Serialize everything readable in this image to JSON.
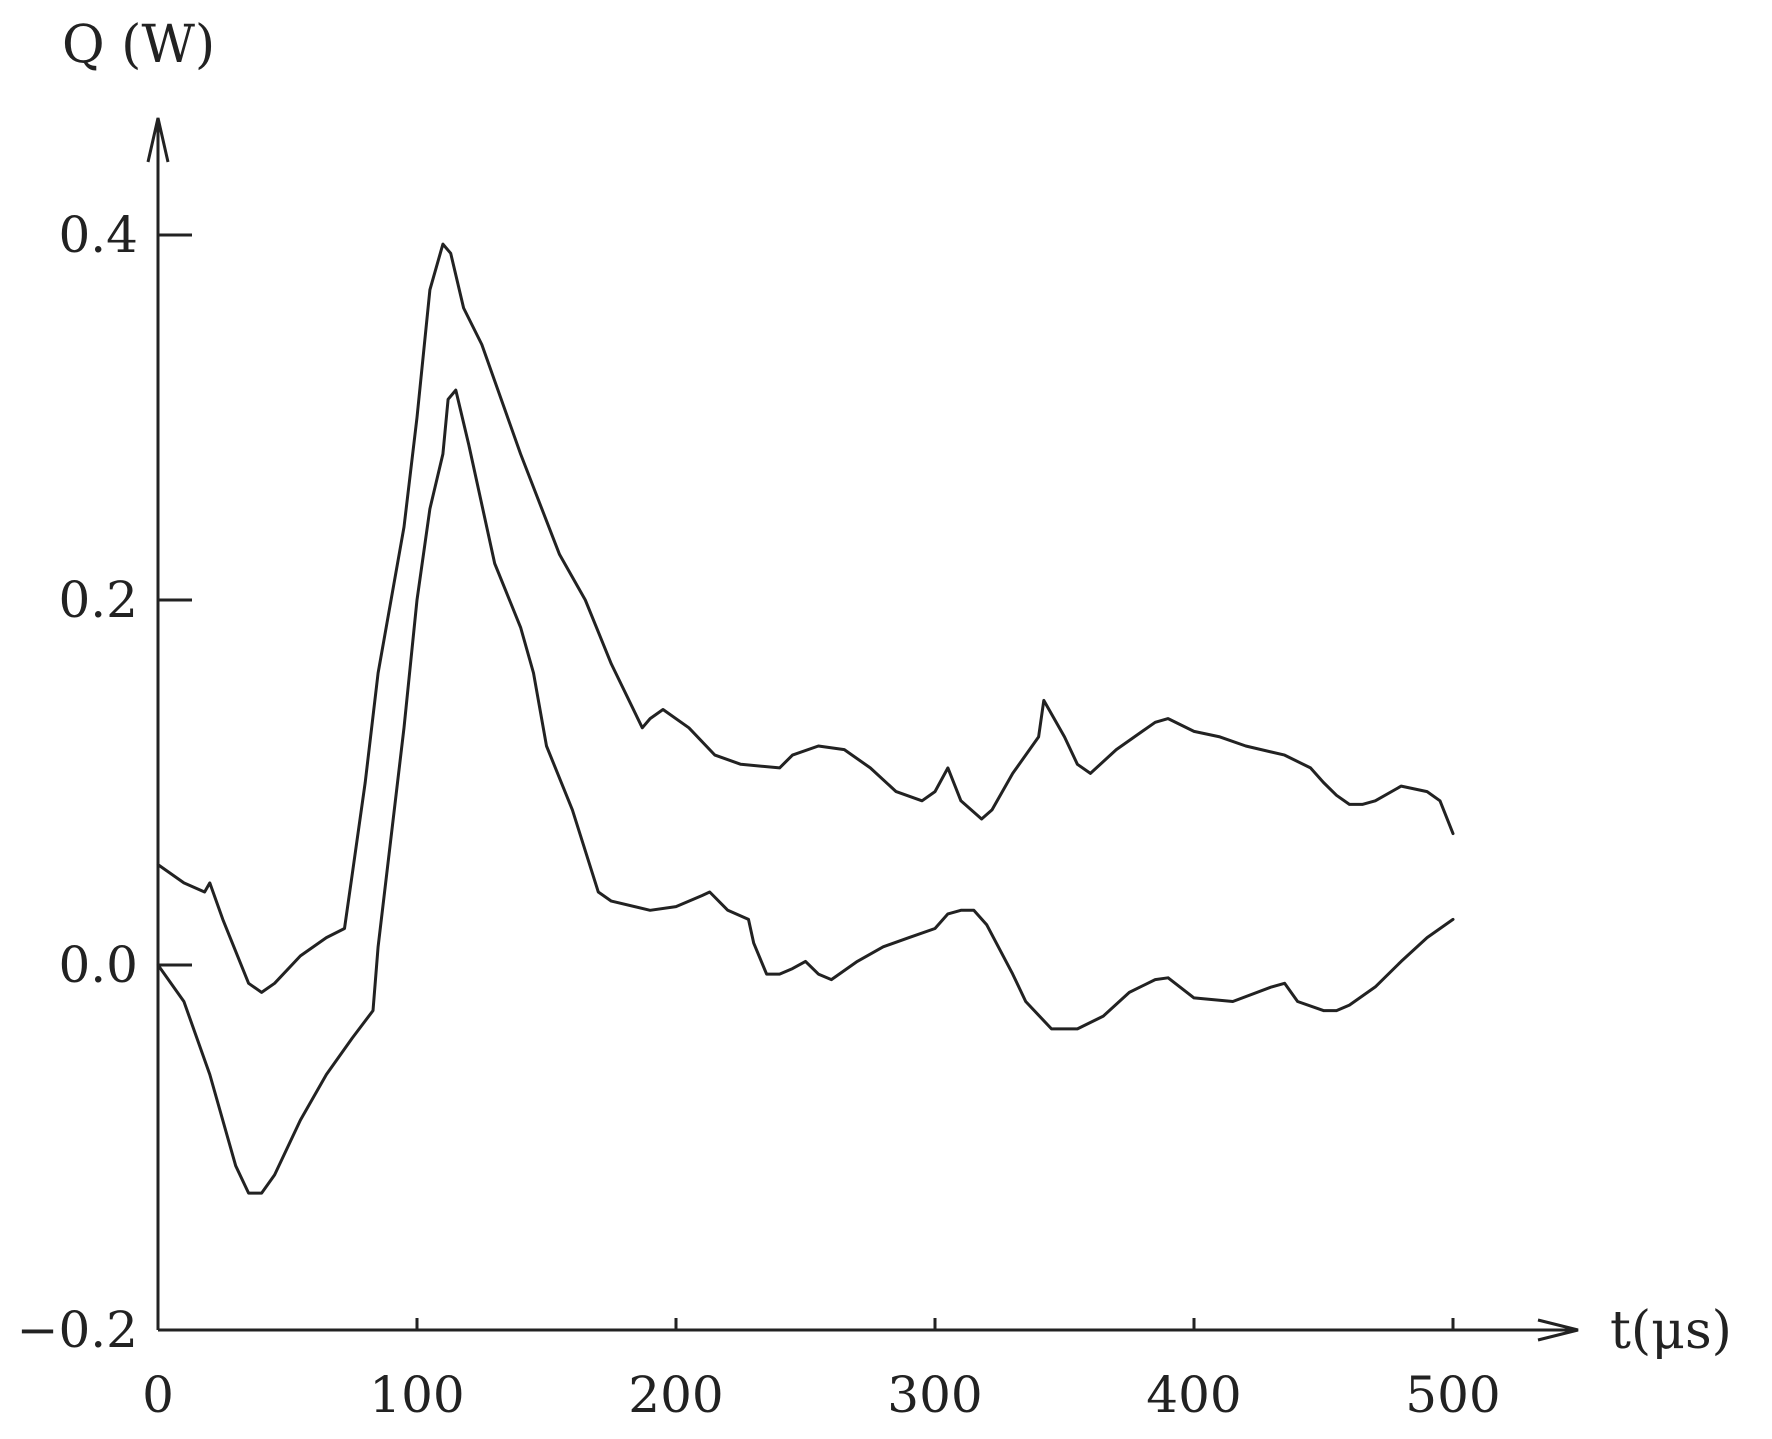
{
  "chart_data": {
    "type": "line",
    "ylabel": "Q (W)",
    "xlabel": "t(μs)",
    "xlim": [
      0,
      550
    ],
    "ylim": [
      -0.2,
      0.46
    ],
    "xticks": [
      {
        "value": 0,
        "label": "0"
      },
      {
        "value": 100,
        "label": "100"
      },
      {
        "value": 200,
        "label": "200"
      },
      {
        "value": 300,
        "label": "300"
      },
      {
        "value": 400,
        "label": "400"
      },
      {
        "value": 500,
        "label": "500"
      }
    ],
    "yticks": [
      {
        "value": -0.2,
        "label": "−0.2"
      },
      {
        "value": 0.0,
        "label": "0.0"
      },
      {
        "value": 0.2,
        "label": "0.2"
      },
      {
        "value": 0.4,
        "label": "0.4"
      }
    ],
    "grid": false,
    "series": [
      {
        "color": "#222222",
        "x": [
          0,
          10,
          18,
          20,
          25,
          35,
          40,
          45,
          55,
          65,
          72,
          75,
          80,
          85,
          95,
          100,
          105,
          110,
          113,
          118,
          125,
          140,
          155,
          165,
          175,
          187,
          190,
          195,
          205,
          215,
          225,
          240,
          245,
          255,
          265,
          275,
          285,
          295,
          300,
          305,
          310,
          318,
          322,
          330,
          340,
          342,
          350,
          355,
          360,
          370,
          380,
          385,
          390,
          400,
          410,
          420,
          435,
          445,
          450,
          455,
          460,
          465,
          470,
          480,
          490,
          495,
          500
        ],
        "y": [
          0.055,
          0.045,
          0.04,
          0.045,
          0.025,
          -0.01,
          -0.015,
          -0.01,
          0.005,
          0.015,
          0.02,
          0.05,
          0.1,
          0.16,
          0.24,
          0.3,
          0.37,
          0.395,
          0.39,
          0.36,
          0.34,
          0.28,
          0.225,
          0.2,
          0.165,
          0.13,
          0.135,
          0.14,
          0.13,
          0.115,
          0.11,
          0.108,
          0.115,
          0.12,
          0.118,
          0.108,
          0.095,
          0.09,
          0.095,
          0.108,
          0.09,
          0.08,
          0.085,
          0.105,
          0.125,
          0.145,
          0.125,
          0.11,
          0.105,
          0.118,
          0.128,
          0.133,
          0.135,
          0.128,
          0.125,
          0.12,
          0.115,
          0.108,
          0.1,
          0.093,
          0.088,
          0.088,
          0.09,
          0.098,
          0.095,
          0.09,
          0.072
        ]
      },
      {
        "color": "#222222",
        "x": [
          0,
          10,
          20,
          30,
          35,
          40,
          45,
          55,
          65,
          75,
          83,
          85,
          95,
          100,
          105,
          110,
          112,
          115,
          120,
          130,
          140,
          145,
          150,
          160,
          170,
          175,
          190,
          200,
          210,
          213,
          220,
          228,
          230,
          235,
          240,
          245,
          250,
          255,
          260,
          270,
          280,
          290,
          300,
          305,
          310,
          315,
          320,
          330,
          335,
          345,
          355,
          365,
          375,
          385,
          390,
          400,
          415,
          430,
          435,
          440,
          450,
          455,
          460,
          470,
          480,
          490,
          500
        ],
        "y": [
          0.0,
          -0.02,
          -0.06,
          -0.11,
          -0.125,
          -0.125,
          -0.115,
          -0.085,
          -0.06,
          -0.04,
          -0.025,
          0.01,
          0.13,
          0.2,
          0.25,
          0.28,
          0.31,
          0.315,
          0.285,
          0.22,
          0.185,
          0.16,
          0.12,
          0.085,
          0.04,
          0.035,
          0.03,
          0.032,
          0.038,
          0.04,
          0.03,
          0.025,
          0.012,
          -0.005,
          -0.005,
          -0.002,
          0.002,
          -0.005,
          -0.008,
          0.002,
          0.01,
          0.015,
          0.02,
          0.028,
          0.03,
          0.03,
          0.022,
          -0.005,
          -0.02,
          -0.035,
          -0.035,
          -0.028,
          -0.015,
          -0.008,
          -0.007,
          -0.018,
          -0.02,
          -0.012,
          -0.01,
          -0.02,
          -0.025,
          -0.025,
          -0.022,
          -0.012,
          0.002,
          0.015,
          0.025
        ]
      }
    ]
  }
}
